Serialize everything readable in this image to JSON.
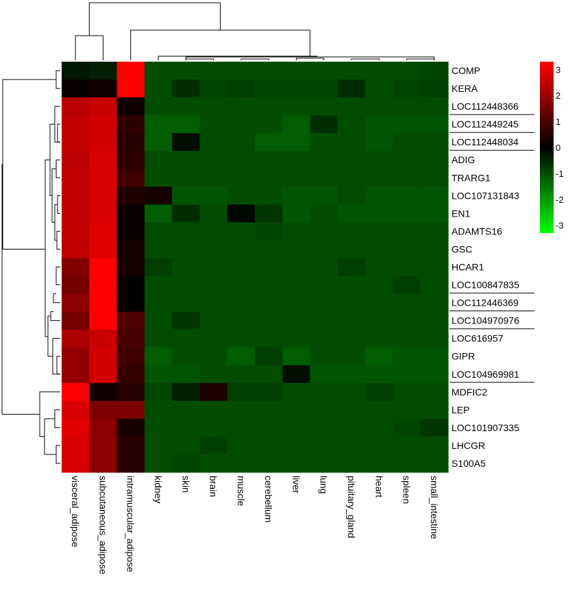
{
  "chart_data": {
    "type": "heatmap",
    "title": "",
    "xlabel": "",
    "ylabel": "",
    "columns": [
      "visceral_adipose",
      "subcutaneous_adipose",
      "intramuscular_adipose",
      "kidney",
      "skin",
      "brain",
      "muscle",
      "cerebellum",
      "liver",
      "lung",
      "pituitary_gland",
      "heart",
      "spleen",
      "small_intestine"
    ],
    "rows": [
      {
        "label": "COMP",
        "underlined": false,
        "values": [
          -0.3,
          -0.4,
          3.3,
          -1.0,
          -1.0,
          -1.0,
          -1.0,
          -1.0,
          -1.0,
          -1.0,
          -1.0,
          -1.0,
          -1.0,
          -0.9
        ]
      },
      {
        "label": "KERA",
        "underlined": false,
        "values": [
          0.1,
          0.2,
          3.3,
          -1.0,
          -0.6,
          -0.9,
          -0.8,
          -0.9,
          -0.9,
          -0.9,
          -0.6,
          -1.0,
          -0.9,
          -0.8
        ]
      },
      {
        "label": "LOC112448366",
        "underlined": true,
        "values": [
          2.4,
          2.6,
          0.2,
          -1.0,
          -1.0,
          -1.0,
          -1.0,
          -1.0,
          -1.0,
          -1.0,
          -1.0,
          -1.0,
          -1.0,
          -1.0
        ]
      },
      {
        "label": "LOC112449245",
        "underlined": true,
        "values": [
          2.5,
          2.7,
          0.6,
          -1.2,
          -1.2,
          -1.0,
          -1.0,
          -1.0,
          -1.2,
          -0.6,
          -1.0,
          -1.1,
          -1.1,
          -1.1
        ]
      },
      {
        "label": "LOC112448034",
        "underlined": true,
        "values": [
          2.5,
          2.7,
          0.5,
          -1.2,
          -0.2,
          -1.0,
          -1.0,
          -1.2,
          -1.2,
          -1.0,
          -1.0,
          -1.1,
          -1.0,
          -1.0
        ]
      },
      {
        "label": "ADIG",
        "underlined": false,
        "values": [
          2.4,
          2.8,
          0.6,
          -1.0,
          -1.0,
          -1.0,
          -1.0,
          -1.0,
          -1.0,
          -1.0,
          -1.0,
          -1.0,
          -1.0,
          -1.0
        ]
      },
      {
        "label": "TRARG1",
        "underlined": false,
        "values": [
          2.5,
          2.8,
          0.8,
          -1.0,
          -1.0,
          -1.0,
          -1.0,
          -1.0,
          -1.0,
          -1.0,
          -1.0,
          -1.0,
          -1.0,
          -1.0
        ]
      },
      {
        "label": "LOC107131843",
        "underlined": false,
        "values": [
          2.5,
          2.8,
          0.4,
          0.3,
          -1.1,
          -1.1,
          -1.0,
          -1.0,
          -1.1,
          -1.1,
          -1.0,
          -1.1,
          -1.1,
          -1.1
        ]
      },
      {
        "label": "EN1",
        "underlined": false,
        "values": [
          2.5,
          2.8,
          0.1,
          -1.2,
          -0.6,
          -1.0,
          -0.1,
          -0.7,
          -1.1,
          -1.0,
          -1.1,
          -1.1,
          -1.1,
          -1.1
        ]
      },
      {
        "label": "ADAMTS16",
        "underlined": false,
        "values": [
          2.5,
          2.9,
          0.1,
          -1.0,
          -1.0,
          -1.0,
          -1.0,
          -0.9,
          -1.0,
          -1.0,
          -1.0,
          -1.0,
          -1.0,
          -1.0
        ]
      },
      {
        "label": "GSC",
        "underlined": false,
        "values": [
          2.5,
          2.9,
          0.3,
          -1.0,
          -1.0,
          -1.0,
          -1.0,
          -1.0,
          -1.0,
          -1.0,
          -1.0,
          -1.0,
          -1.0,
          -1.0
        ]
      },
      {
        "label": "HCAR1",
        "underlined": false,
        "values": [
          1.7,
          3.3,
          0.3,
          -0.8,
          -1.0,
          -1.0,
          -1.0,
          -1.0,
          -1.0,
          -1.0,
          -0.8,
          -1.0,
          -1.0,
          -1.0
        ]
      },
      {
        "label": "LOC100847835",
        "underlined": true,
        "values": [
          1.5,
          3.3,
          0.0,
          -1.0,
          -1.0,
          -1.0,
          -1.0,
          -1.0,
          -1.0,
          -1.0,
          -1.0,
          -1.0,
          -0.8,
          -1.0
        ]
      },
      {
        "label": "LOC112446369",
        "underlined": true,
        "values": [
          1.8,
          3.3,
          0.0,
          -1.0,
          -1.0,
          -1.0,
          -1.0,
          -1.0,
          -1.0,
          -1.0,
          -1.0,
          -1.0,
          -1.0,
          -1.0
        ]
      },
      {
        "label": "LOC104970976",
        "underlined": true,
        "values": [
          1.5,
          3.3,
          1.0,
          -1.0,
          -0.7,
          -1.0,
          -1.0,
          -1.0,
          -1.0,
          -1.0,
          -1.0,
          -1.0,
          -1.0,
          -1.0
        ]
      },
      {
        "label": "LOC616957",
        "underlined": false,
        "values": [
          2.2,
          2.6,
          0.9,
          -1.0,
          -1.0,
          -1.0,
          -1.0,
          -1.0,
          -1.0,
          -1.0,
          -1.0,
          -1.0,
          -1.0,
          -1.0
        ]
      },
      {
        "label": "GIPR",
        "underlined": false,
        "values": [
          1.9,
          2.7,
          0.8,
          -1.2,
          -1.0,
          -1.0,
          -1.2,
          -0.8,
          -1.2,
          -1.0,
          -1.0,
          -1.2,
          -1.1,
          -1.1
        ]
      },
      {
        "label": "LOC104969981",
        "underlined": true,
        "values": [
          1.9,
          2.7,
          0.7,
          -1.1,
          -1.1,
          -1.0,
          -1.0,
          -1.0,
          -0.2,
          -1.1,
          -1.1,
          -1.1,
          -1.1,
          -1.1
        ]
      },
      {
        "label": "MDFIC2",
        "underlined": false,
        "values": [
          3.3,
          0.2,
          0.5,
          -0.9,
          -0.4,
          0.4,
          -0.8,
          -0.8,
          -1.0,
          -1.0,
          -1.0,
          -0.8,
          -1.0,
          -1.0
        ]
      },
      {
        "label": "LEP",
        "underlined": false,
        "values": [
          2.8,
          1.6,
          1.6,
          -1.0,
          -1.0,
          -1.0,
          -1.0,
          -1.0,
          -1.0,
          -1.0,
          -1.0,
          -1.0,
          -1.0,
          -1.0
        ]
      },
      {
        "label": "LOC101907335",
        "underlined": false,
        "values": [
          2.9,
          1.8,
          0.3,
          -1.0,
          -1.0,
          -1.0,
          -1.0,
          -1.0,
          -1.0,
          -1.0,
          -1.0,
          -1.0,
          -0.9,
          -0.7
        ]
      },
      {
        "label": "LHCGR",
        "underlined": false,
        "values": [
          2.8,
          1.8,
          0.5,
          -1.0,
          -1.0,
          -0.8,
          -1.0,
          -1.0,
          -1.0,
          -1.0,
          -1.0,
          -1.0,
          -1.0,
          -1.0
        ]
      },
      {
        "label": "S100A5",
        "underlined": false,
        "values": [
          2.8,
          1.8,
          0.5,
          -1.0,
          -0.9,
          -1.0,
          -1.0,
          -1.0,
          -1.0,
          -1.0,
          -1.0,
          -1.0,
          -1.0,
          -1.0
        ]
      }
    ],
    "color_scale": {
      "min": -3.3,
      "max": 3.3,
      "ticks": [
        3,
        2,
        1,
        0,
        -1,
        -2,
        -3
      ],
      "low_color": "#00ff00",
      "mid_color": "#000000",
      "high_color": "#ff0000"
    },
    "column_dendrogram": true,
    "row_dendrogram": true
  }
}
